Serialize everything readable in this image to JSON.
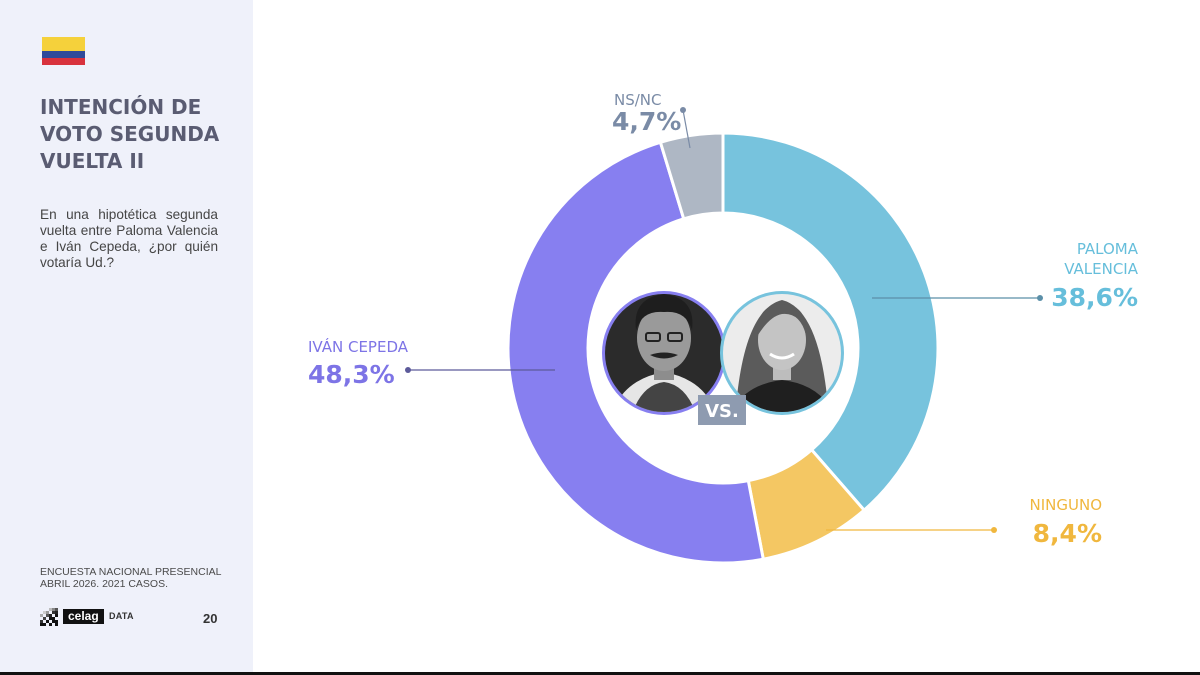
{
  "sidebar": {
    "title_lines": [
      "INTENCIÓN DE",
      "VOTO SEGUNDA",
      "VUELTA II"
    ],
    "question": "En una hipotética segunda vuelta entre Paloma Valencia e Iván Cepeda, ¿por quién votaría Ud.?",
    "source_lines": [
      "ENCUESTA NACIONAL PRESENCIAL",
      "ABRIL 2026. 2021 CASOS."
    ],
    "logo_word": "celag",
    "logo_data": "DATA",
    "page_number": "20",
    "flag_colors": [
      "#f5d13b",
      "#2f4a9a",
      "#d8323d"
    ]
  },
  "chart_data": {
    "type": "pie",
    "style": "donut",
    "slices": [
      {
        "label": "PALOMA VALENCIA",
        "value": 38.6,
        "display": "38,6%",
        "color": "#77c3dd",
        "text_color": "#66bedb"
      },
      {
        "label": "NINGUNO",
        "value": 8.4,
        "display": "8,4%",
        "color": "#f4c763",
        "text_color": "#f0b73e"
      },
      {
        "label": "IVÁN CEPEDA",
        "value": 48.3,
        "display": "48,3%",
        "color": "#877ff0",
        "text_color": "#7d74e6"
      },
      {
        "label": "NS/NC",
        "value": 4.7,
        "display": "4,7%",
        "color": "#aeb7c4",
        "text_color": "#7a8ba6"
      }
    ],
    "center_text": "VS."
  }
}
